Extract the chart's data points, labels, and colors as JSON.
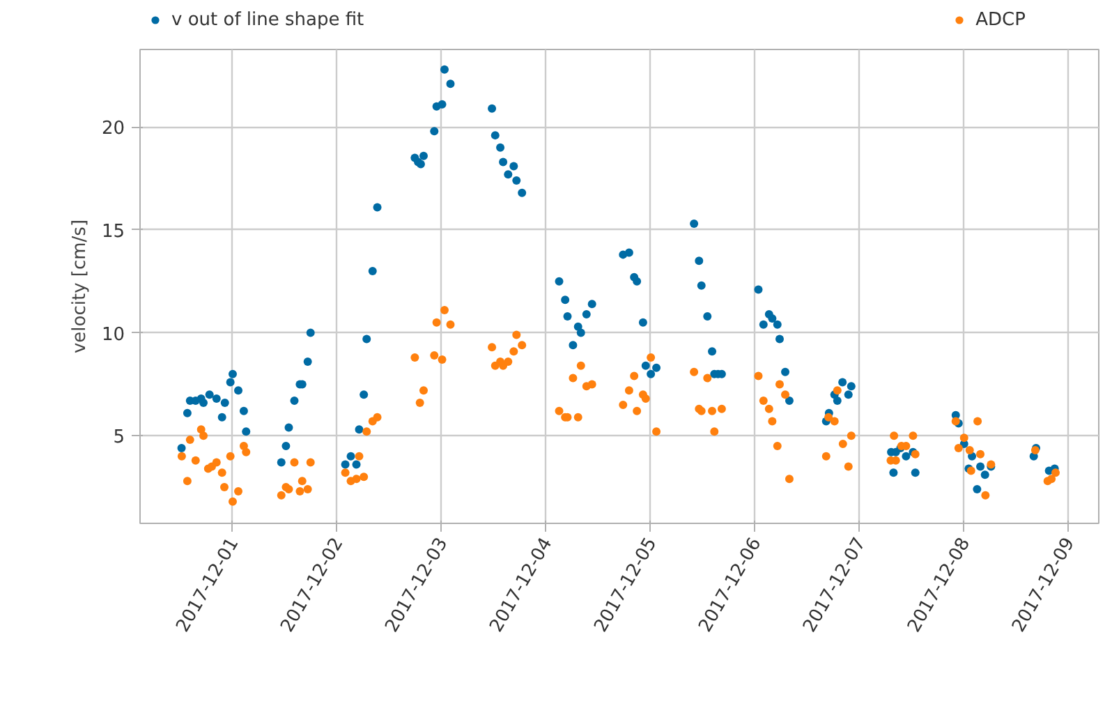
{
  "chart_data": {
    "type": "scatter",
    "ylabel": "velocity [cm/s]",
    "xlim": [
      "2017-11-30T02:43",
      "2017-12-09T06:56"
    ],
    "ylim": [
      0.74,
      23.77
    ],
    "xticks": [
      "2017-12-01",
      "2017-12-02",
      "2017-12-03",
      "2017-12-04",
      "2017-12-05",
      "2017-12-06",
      "2017-12-07",
      "2017-12-08",
      "2017-12-09"
    ],
    "yticks": [
      5,
      10,
      15,
      20
    ],
    "grid": true,
    "legend": "top",
    "marker": "circle",
    "series": [
      {
        "name": "v out of line shape fit",
        "color": "#006ba4",
        "x": [
          "2017-11-30T12:15",
          "2017-11-30T13:35",
          "2017-11-30T14:12",
          "2017-11-30T15:29",
          "2017-11-30T16:45",
          "2017-11-30T17:17",
          "2017-11-30T18:40",
          "2017-11-30T20:17",
          "2017-11-30T22:12",
          "2017-11-30T21:33",
          "2017-11-30T23:28",
          "2017-12-01T00:00",
          "2017-12-01T01:17",
          "2017-12-01T02:33",
          "2017-12-01T03:05",
          "2017-12-01T11:10",
          "2017-12-01T12:14",
          "2017-12-01T12:53",
          "2017-12-01T14:10",
          "2017-12-01T15:26",
          "2017-12-01T15:58",
          "2017-12-01T17:14",
          "2017-12-01T17:53",
          "2017-12-02T01:52",
          "2017-12-02T03:08",
          "2017-12-02T04:25",
          "2017-12-02T05:03",
          "2017-12-02T06:07",
          "2017-12-02T06:46",
          "2017-12-02T08:08",
          "2017-12-02T09:13",
          "2017-12-02T17:50",
          "2017-12-02T18:35",
          "2017-12-02T19:12",
          "2017-12-02T19:51",
          "2017-12-02T22:18",
          "2017-12-02T22:50",
          "2017-12-03T00:06",
          "2017-12-03T00:39",
          "2017-12-03T02:01",
          "2017-12-03T11:33",
          "2017-12-03T12:18",
          "2017-12-03T13:28",
          "2017-12-03T14:07",
          "2017-12-03T15:16",
          "2017-12-03T16:33",
          "2017-12-03T17:11",
          "2017-12-03T18:27",
          "2017-12-04T02:59",
          "2017-12-04T04:22",
          "2017-12-04T04:54",
          "2017-12-04T06:10",
          "2017-12-04T07:20",
          "2017-12-04T07:59",
          "2017-12-04T09:16",
          "2017-12-04T10:32",
          "2017-12-04T17:40",
          "2017-12-04T19:03",
          "2017-12-04T20:13",
          "2017-12-04T20:51",
          "2017-12-04T22:15",
          "2017-12-04T22:52",
          "2017-12-05T00:03",
          "2017-12-05T01:19",
          "2017-12-05T09:58",
          "2017-12-05T11:07",
          "2017-12-05T11:40",
          "2017-12-05T13:02",
          "2017-12-05T14:07",
          "2017-12-05T14:38",
          "2017-12-05T15:29",
          "2017-12-05T16:20",
          "2017-12-06T00:45",
          "2017-12-06T01:55",
          "2017-12-06T03:12",
          "2017-12-06T03:56",
          "2017-12-06T05:07",
          "2017-12-06T05:38",
          "2017-12-06T06:55",
          "2017-12-06T07:52",
          "2017-12-06T16:19",
          "2017-12-06T16:58",
          "2017-12-06T18:14",
          "2017-12-06T18:53",
          "2017-12-06T20:04",
          "2017-12-06T21:26",
          "2017-12-06T22:05",
          "2017-12-07T07:15",
          "2017-12-07T08:19",
          "2017-12-07T09:23",
          "2017-12-07T10:40",
          "2017-12-07T12:16",
          "2017-12-07T07:47",
          "2017-12-07T12:48",
          "2017-12-07T22:05",
          "2017-12-07T22:44",
          "2017-12-08T00:00",
          "2017-12-08T01:04",
          "2017-12-08T01:49",
          "2017-12-08T02:59",
          "2017-12-08T03:44",
          "2017-12-08T04:48",
          "2017-12-08T06:11",
          "2017-12-08T16:00",
          "2017-12-08T16:32",
          "2017-12-08T19:31",
          "2017-12-08T20:48"
        ],
        "values": [
          4.4,
          6.1,
          6.7,
          6.7,
          6.8,
          6.6,
          7.0,
          6.8,
          6.6,
          5.9,
          7.6,
          8.0,
          7.2,
          6.2,
          5.2,
          3.7,
          4.5,
          5.4,
          6.7,
          7.5,
          7.5,
          8.6,
          10.0,
          3.6,
          4.0,
          3.6,
          5.3,
          7.0,
          9.7,
          13.0,
          16.1,
          18.5,
          18.3,
          18.2,
          18.6,
          19.8,
          21.0,
          21.1,
          22.8,
          22.1,
          20.9,
          19.6,
          19.0,
          18.3,
          17.7,
          18.1,
          17.4,
          16.8,
          12.5,
          11.6,
          10.8,
          9.4,
          10.3,
          10.0,
          10.9,
          11.4,
          13.8,
          13.9,
          12.7,
          12.5,
          10.5,
          8.4,
          8.0,
          8.3,
          15.3,
          13.5,
          12.3,
          10.8,
          9.1,
          8.0,
          8.0,
          8.0,
          12.1,
          10.4,
          10.9,
          10.7,
          10.4,
          9.7,
          8.1,
          6.7,
          5.7,
          6.1,
          7.0,
          6.7,
          7.6,
          7.0,
          7.4,
          4.2,
          4.2,
          4.4,
          4.0,
          4.2,
          3.2,
          3.2,
          6.0,
          5.6,
          4.6,
          3.4,
          4.0,
          2.4,
          3.5,
          3.1,
          3.5,
          4.0,
          4.4,
          3.3,
          3.4
        ]
      },
      {
        "name": "ADCP",
        "color": "#ff800e",
        "x": [
          "2017-11-30T12:18",
          "2017-11-30T13:35",
          "2017-11-30T14:12",
          "2017-11-30T15:29",
          "2017-11-30T16:45",
          "2017-11-30T17:17",
          "2017-11-30T18:22",
          "2017-11-30T19:12",
          "2017-11-30T20:17",
          "2017-11-30T21:33",
          "2017-11-30T22:05",
          "2017-11-30T23:28",
          "2017-12-01T00:00",
          "2017-12-01T01:17",
          "2017-12-01T02:33",
          "2017-12-01T03:05",
          "2017-12-01T11:10",
          "2017-12-01T12:14",
          "2017-12-01T12:53",
          "2017-12-01T14:10",
          "2017-12-01T15:26",
          "2017-12-01T15:58",
          "2017-12-01T17:14",
          "2017-12-01T17:53",
          "2017-12-02T01:52",
          "2017-12-02T03:08",
          "2017-12-02T04:25",
          "2017-12-02T06:07",
          "2017-12-02T05:03",
          "2017-12-02T06:46",
          "2017-12-02T08:08",
          "2017-12-02T09:13",
          "2017-12-02T17:50",
          "2017-12-02T19:00",
          "2017-12-02T19:51",
          "2017-12-02T22:18",
          "2017-12-02T22:50",
          "2017-12-03T00:06",
          "2017-12-03T00:39",
          "2017-12-03T02:01",
          "2017-12-03T11:33",
          "2017-12-03T12:18",
          "2017-12-03T13:28",
          "2017-12-03T14:07",
          "2017-12-03T15:16",
          "2017-12-03T16:33",
          "2017-12-03T17:11",
          "2017-12-03T18:27",
          "2017-12-04T02:59",
          "2017-12-04T04:22",
          "2017-12-04T04:54",
          "2017-12-04T07:20",
          "2017-12-04T06:10",
          "2017-12-04T07:59",
          "2017-12-04T09:16",
          "2017-12-04T10:32",
          "2017-12-04T17:40",
          "2017-12-04T19:03",
          "2017-12-04T20:13",
          "2017-12-04T20:51",
          "2017-12-04T22:15",
          "2017-12-04T22:52",
          "2017-12-05T00:03",
          "2017-12-05T01:19",
          "2017-12-05T09:58",
          "2017-12-05T11:07",
          "2017-12-05T11:40",
          "2017-12-05T13:02",
          "2017-12-05T14:07",
          "2017-12-05T14:38",
          "2017-12-05T16:20",
          "2017-12-06T00:45",
          "2017-12-06T01:55",
          "2017-12-06T03:12",
          "2017-12-06T03:56",
          "2017-12-06T05:07",
          "2017-12-06T05:38",
          "2017-12-06T06:55",
          "2017-12-06T07:52",
          "2017-12-06T16:51",
          "2017-12-06T18:14",
          "2017-12-06T18:53",
          "2017-12-06T20:10",
          "2017-12-06T21:26",
          "2017-12-06T22:05",
          "2017-12-06T16:19",
          "2017-12-07T07:54",
          "2017-12-07T12:16",
          "2017-12-07T07:09",
          "2017-12-07T08:19",
          "2017-12-07T09:36",
          "2017-12-07T10:40",
          "2017-12-07T12:48",
          "2017-12-07T22:05",
          "2017-12-08T00:00",
          "2017-12-07T22:44",
          "2017-12-08T03:06",
          "2017-12-08T01:17",
          "2017-12-08T03:44",
          "2017-12-08T01:36",
          "2017-12-08T06:11",
          "2017-12-08T04:54",
          "2017-12-08T16:21",
          "2017-12-08T19:12",
          "2017-12-08T20:04",
          "2017-12-08T21:01"
        ],
        "values": [
          4.0,
          2.8,
          4.8,
          3.8,
          5.3,
          5.0,
          3.4,
          3.5,
          3.7,
          3.2,
          2.5,
          4.0,
          1.8,
          2.3,
          4.5,
          4.2,
          2.1,
          2.5,
          2.4,
          3.7,
          2.3,
          2.8,
          2.4,
          3.7,
          3.2,
          2.8,
          2.9,
          3.0,
          4.0,
          5.2,
          5.7,
          5.9,
          8.8,
          6.6,
          7.2,
          8.9,
          10.5,
          8.7,
          11.1,
          10.4,
          9.3,
          8.4,
          8.6,
          8.4,
          8.6,
          9.1,
          9.9,
          9.4,
          6.2,
          5.9,
          5.9,
          5.9,
          7.8,
          8.4,
          7.4,
          7.5,
          6.5,
          7.2,
          7.9,
          6.2,
          7.0,
          6.8,
          8.8,
          5.2,
          8.1,
          6.3,
          6.2,
          7.8,
          6.2,
          5.2,
          6.3,
          7.9,
          6.7,
          6.3,
          5.7,
          4.5,
          7.5,
          7.0,
          2.9,
          5.9,
          5.7,
          7.2,
          4.6,
          3.5,
          5.0,
          4.0,
          5.0,
          5.0,
          3.8,
          3.8,
          4.5,
          4.5,
          4.1,
          5.7,
          4.9,
          4.4,
          5.7,
          4.3,
          4.1,
          3.3,
          3.6,
          2.1,
          4.3,
          2.8,
          2.9,
          3.2
        ]
      }
    ]
  }
}
